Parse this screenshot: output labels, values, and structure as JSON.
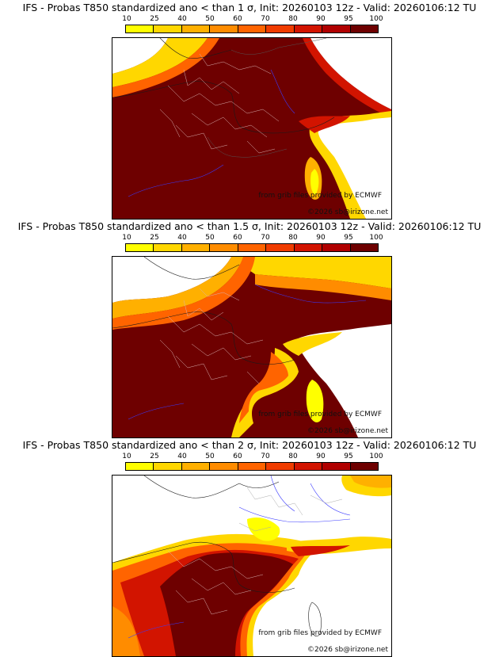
{
  "panels": [
    {
      "title": "IFS - Probas T850  standardized ano < than 1 σ, Init: 20260103 12z - Valid: 20260106:12 TU",
      "ecmwf_credit": "from grib files provided by ECMWF",
      "copyright": "©2026 sb@irizone.net"
    },
    {
      "title": "IFS - Probas T850  standardized ano < than 1.5 σ, Init: 20260103 12z - Valid: 20260106:12 TU",
      "ecmwf_credit": "from grib files provided by ECMWF",
      "copyright": "©2026 sb@irizone.net"
    },
    {
      "title": "IFS - Probas T850  standardized ano < than 2 σ, Init: 20260103 12z - Valid: 20260106:12 TU",
      "ecmwf_credit": "from grib files provided by ECMWF",
      "copyright": "©2026 sb@irizone.net"
    }
  ],
  "colorbar": {
    "ticks": [
      "10",
      "25",
      "40",
      "50",
      "60",
      "70",
      "80",
      "90",
      "95",
      "100"
    ],
    "colors": [
      "#ffff00",
      "#ffd700",
      "#ffb000",
      "#ff8c00",
      "#ff6400",
      "#f03c00",
      "#d21400",
      "#b00000",
      "#6e0000"
    ]
  },
  "map_colors": {
    "background": "#ffffff",
    "land_border": "#000000",
    "river": "#2a2aff",
    "department_border": "#d8b0b0",
    "max_prob": "#6e0000"
  }
}
